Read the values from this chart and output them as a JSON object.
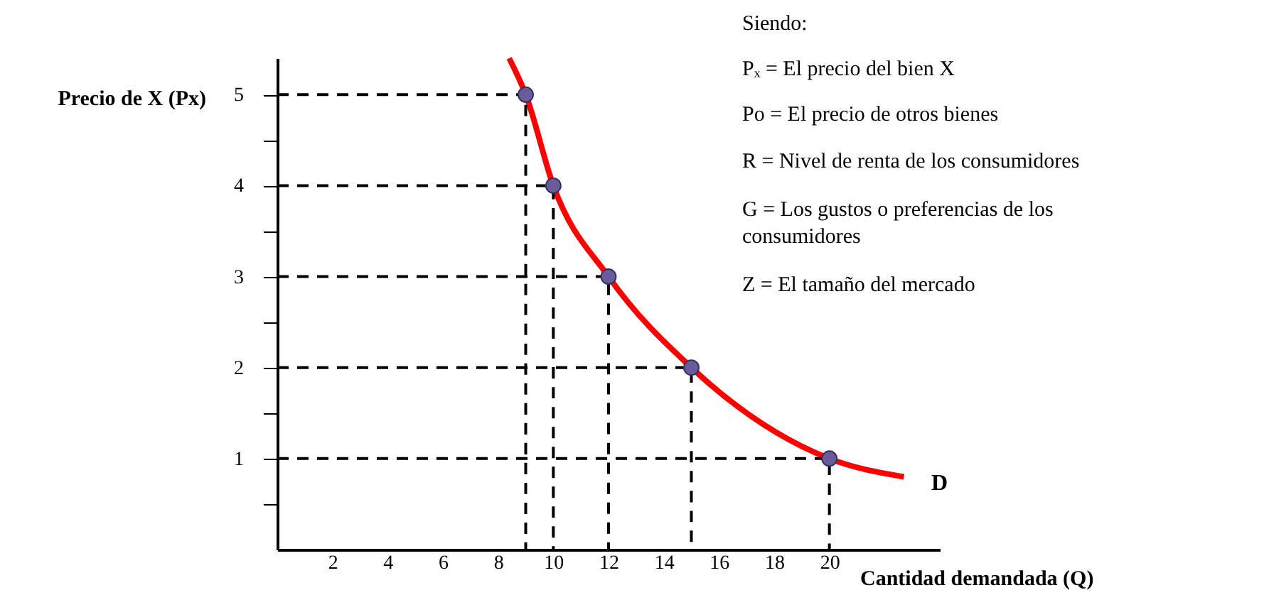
{
  "chart_data": {
    "type": "line",
    "xlabel": "Cantidad demandada (Q)",
    "ylabel": "Precio  de X (Px)",
    "xlim": [
      0,
      24
    ],
    "ylim": [
      0,
      5.4
    ],
    "xticks": [
      2,
      4,
      6,
      8,
      10,
      12,
      14,
      16,
      18,
      20
    ],
    "yticks": [
      {
        "value": 0.5,
        "label": null
      },
      1,
      {
        "value": 1.5,
        "label": null
      },
      2,
      {
        "value": 2.5,
        "label": null
      },
      3,
      {
        "value": 3.5,
        "label": null
      },
      4,
      {
        "value": 4.5,
        "label": null
      },
      5
    ],
    "grid": false,
    "series": [
      {
        "type": "line",
        "color": "#ff0000",
        "line_style": "solid",
        "marker": "none",
        "x": [
          8.4,
          9,
          10,
          12,
          15,
          20,
          22.7
        ],
        "values": [
          5.4,
          5,
          4,
          3,
          2,
          1,
          0.8
        ]
      },
      {
        "type": "line",
        "color": "#000000",
        "line_style": "dashed",
        "marker": "none",
        "x": [
          0,
          9,
          9
        ],
        "values": [
          5,
          5,
          0
        ]
      },
      {
        "type": "line",
        "color": "#000000",
        "line_style": "dashed",
        "marker": "none",
        "x": [
          0,
          10,
          10
        ],
        "values": [
          4,
          4,
          0
        ]
      },
      {
        "type": "line",
        "color": "#000000",
        "line_style": "dashed",
        "marker": "none",
        "x": [
          0,
          12,
          12
        ],
        "values": [
          3,
          3,
          0
        ]
      },
      {
        "type": "line",
        "color": "#000000",
        "line_style": "dashed",
        "marker": "none",
        "x": [
          0,
          15,
          15
        ],
        "values": [
          2,
          2,
          0
        ]
      },
      {
        "type": "line",
        "color": "#000000",
        "line_style": "dashed",
        "marker": "none",
        "x": [
          0,
          20,
          20
        ],
        "values": [
          1,
          1,
          0
        ]
      },
      {
        "type": "scatter",
        "color": "#6a5c9a",
        "marker": "circle",
        "x": [
          9,
          10,
          12,
          15,
          20
        ],
        "values": [
          5,
          4,
          3,
          2,
          1
        ]
      }
    ],
    "annotations": [
      "D",
      "Siendo:",
      "Pₓ = El precio del bien X",
      "Po = El precio de otros bienes",
      "R = Nivel de renta de los consumidores",
      "G  =  Los  gustos  o  preferencias  de  los",
      "consumidores",
      "Z = El tamaño del mercado"
    ]
  }
}
